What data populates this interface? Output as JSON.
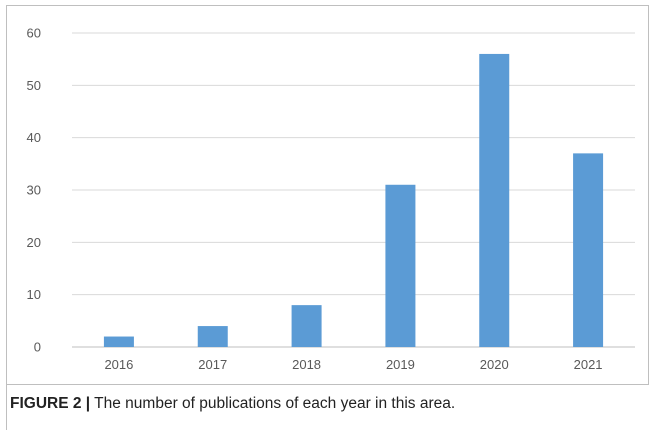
{
  "chart_data": {
    "type": "bar",
    "categories": [
      "2016",
      "2017",
      "2018",
      "2019",
      "2020",
      "2021"
    ],
    "values": [
      2,
      4,
      8,
      31,
      56,
      37
    ],
    "title": "",
    "xlabel": "",
    "ylabel": "",
    "ylim": [
      0,
      60
    ],
    "yticks": [
      0,
      10,
      20,
      30,
      40,
      50,
      60
    ],
    "grid": true,
    "legend": "none",
    "colors": {
      "bar": "#5b9bd5",
      "grid": "#d9d9d9",
      "axis": "#bfbfbf"
    }
  },
  "caption": {
    "label": "FIGURE 2 |",
    "text": " The number of publications of each year in this area."
  }
}
